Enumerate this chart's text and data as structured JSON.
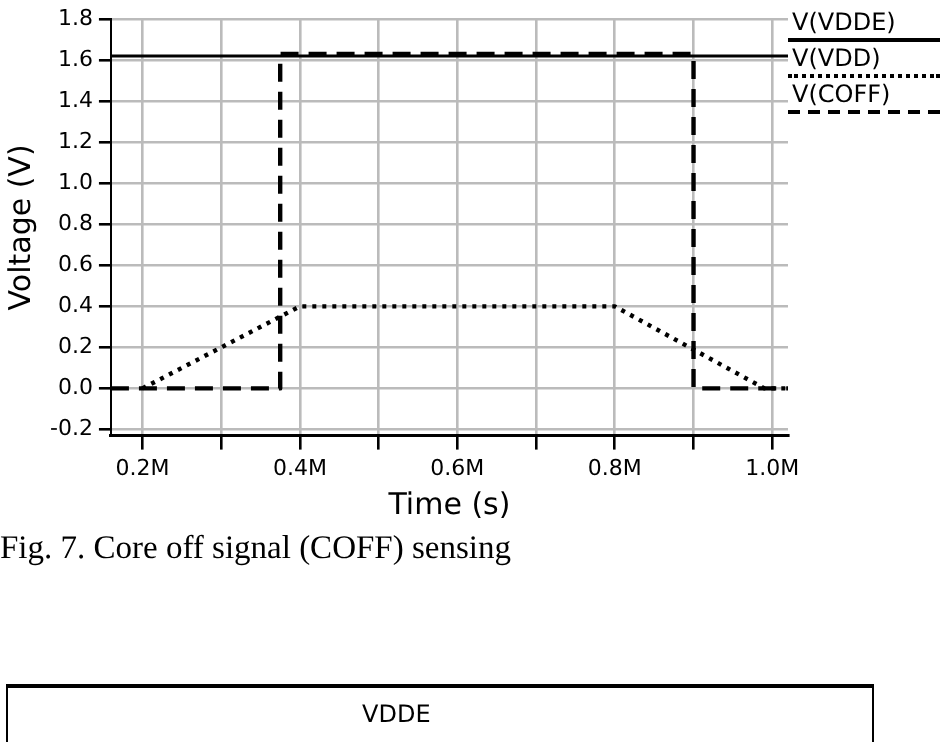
{
  "chart_data": {
    "type": "line",
    "xlabel": "Time (s)",
    "ylabel": "Voltage (V)",
    "xlim": [
      0.16,
      1.02
    ],
    "ylim": [
      -0.23,
      1.8
    ],
    "xticks": [
      {
        "value": 0.2,
        "label": "0.2M"
      },
      {
        "value": 0.3,
        "label": null
      },
      {
        "value": 0.4,
        "label": "0.4M"
      },
      {
        "value": 0.5,
        "label": null
      },
      {
        "value": 0.6,
        "label": "0.6M"
      },
      {
        "value": 0.7,
        "label": null
      },
      {
        "value": 0.8,
        "label": "0.8M"
      },
      {
        "value": 0.9,
        "label": null
      },
      {
        "value": 1.0,
        "label": "1.0M"
      }
    ],
    "yticks": [
      {
        "value": -0.2,
        "label": "-0.2"
      },
      {
        "value": 0,
        "label": "0.0"
      },
      {
        "value": 0.2,
        "label": "0.2"
      },
      {
        "value": 0.4,
        "label": "0.4"
      },
      {
        "value": 0.6,
        "label": "0.6"
      },
      {
        "value": 0.8,
        "label": "0.8"
      },
      {
        "value": 1,
        "label": "1.0"
      },
      {
        "value": 1.2,
        "label": "1.2"
      },
      {
        "value": 1.4,
        "label": "1.4"
      },
      {
        "value": 1.6,
        "label": "1.6"
      },
      {
        "value": 1.8,
        "label": "1.8"
      }
    ],
    "grid": true,
    "legend": "right",
    "marker": "none",
    "series": [
      {
        "name": "V(VDDE)",
        "color": "#000000",
        "line_style": "solid",
        "x": [
          0.16,
          1.02
        ],
        "values": [
          1.62,
          1.62
        ]
      },
      {
        "name": "V(VDD)",
        "color": "#000000",
        "line_style": "dotted",
        "x": [
          0.2,
          0.4,
          0.8,
          0.99,
          1.02
        ],
        "values": [
          0,
          0.4,
          0.4,
          0,
          0
        ]
      },
      {
        "name": "V(COFF)",
        "color": "#000000",
        "line_style": "dashed",
        "x": [
          0.16,
          0.375,
          0.375,
          0.9,
          0.9,
          1.02
        ],
        "values": [
          0,
          0,
          1.63,
          1.63,
          0,
          0
        ]
      }
    ],
    "annotations": [
      "Fig. 7. Core off signal (COFF) sensing",
      "VDDE"
    ]
  }
}
